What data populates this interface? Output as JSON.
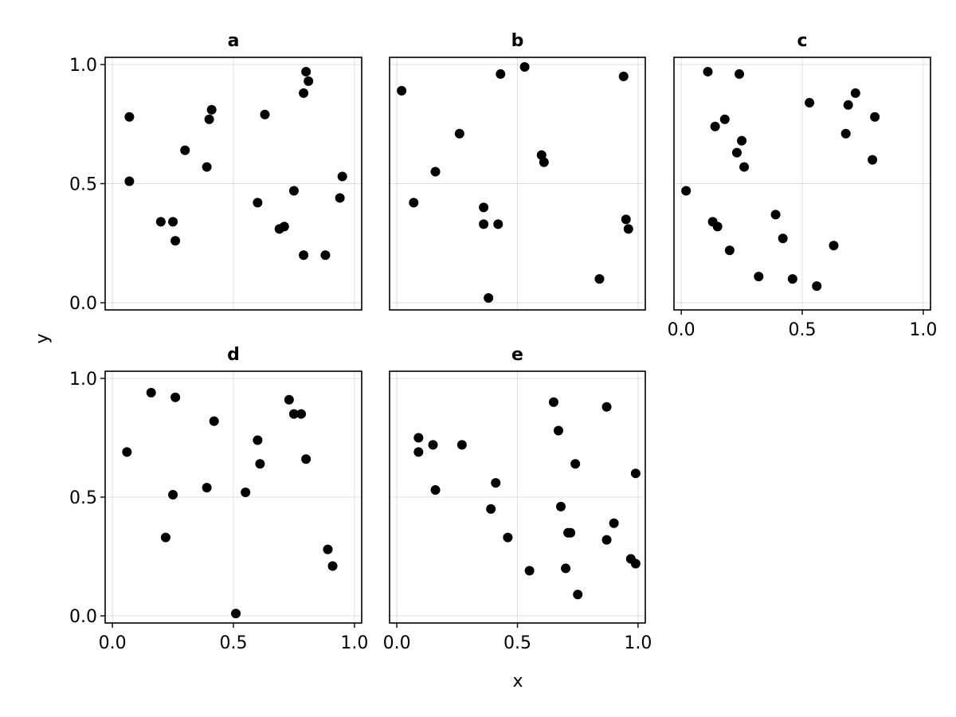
{
  "chart_data": {
    "type": "scatter",
    "xlabel": "x",
    "ylabel": "y",
    "xlim": [
      0.0,
      1.0
    ],
    "ylim": [
      0.0,
      1.0
    ],
    "xticks": [
      "0.0",
      "0.5",
      "1.0"
    ],
    "yticks": [
      "0.0",
      "0.5",
      "1.0"
    ],
    "grid": true,
    "marker_color": "#000000",
    "panels": [
      {
        "title": "a",
        "points": [
          [
            0.07,
            0.78
          ],
          [
            0.07,
            0.51
          ],
          [
            0.2,
            0.34
          ],
          [
            0.25,
            0.34
          ],
          [
            0.26,
            0.26
          ],
          [
            0.3,
            0.64
          ],
          [
            0.39,
            0.57
          ],
          [
            0.4,
            0.77
          ],
          [
            0.41,
            0.81
          ],
          [
            0.6,
            0.42
          ],
          [
            0.63,
            0.79
          ],
          [
            0.69,
            0.31
          ],
          [
            0.71,
            0.32
          ],
          [
            0.75,
            0.47
          ],
          [
            0.79,
            0.2
          ],
          [
            0.79,
            0.88
          ],
          [
            0.8,
            0.97
          ],
          [
            0.81,
            0.93
          ],
          [
            0.88,
            0.2
          ],
          [
            0.94,
            0.44
          ],
          [
            0.95,
            0.53
          ]
        ]
      },
      {
        "title": "b",
        "points": [
          [
            0.02,
            0.89
          ],
          [
            0.07,
            0.42
          ],
          [
            0.16,
            0.55
          ],
          [
            0.26,
            0.71
          ],
          [
            0.36,
            0.4
          ],
          [
            0.36,
            0.33
          ],
          [
            0.38,
            0.02
          ],
          [
            0.42,
            0.33
          ],
          [
            0.43,
            0.96
          ],
          [
            0.53,
            0.99
          ],
          [
            0.6,
            0.62
          ],
          [
            0.61,
            0.59
          ],
          [
            0.84,
            0.1
          ],
          [
            0.94,
            0.95
          ],
          [
            0.95,
            0.35
          ],
          [
            0.96,
            0.31
          ]
        ]
      },
      {
        "title": "c",
        "points": [
          [
            0.02,
            0.47
          ],
          [
            0.11,
            0.97
          ],
          [
            0.13,
            0.34
          ],
          [
            0.14,
            0.74
          ],
          [
            0.15,
            0.32
          ],
          [
            0.18,
            0.77
          ],
          [
            0.2,
            0.22
          ],
          [
            0.23,
            0.63
          ],
          [
            0.24,
            0.96
          ],
          [
            0.25,
            0.68
          ],
          [
            0.26,
            0.57
          ],
          [
            0.32,
            0.11
          ],
          [
            0.39,
            0.37
          ],
          [
            0.42,
            0.27
          ],
          [
            0.46,
            0.1
          ],
          [
            0.53,
            0.84
          ],
          [
            0.56,
            0.07
          ],
          [
            0.63,
            0.24
          ],
          [
            0.68,
            0.71
          ],
          [
            0.69,
            0.83
          ],
          [
            0.72,
            0.88
          ],
          [
            0.79,
            0.6
          ],
          [
            0.8,
            0.78
          ]
        ]
      },
      {
        "title": "d",
        "points": [
          [
            0.06,
            0.69
          ],
          [
            0.16,
            0.94
          ],
          [
            0.22,
            0.33
          ],
          [
            0.25,
            0.51
          ],
          [
            0.26,
            0.92
          ],
          [
            0.39,
            0.54
          ],
          [
            0.42,
            0.82
          ],
          [
            0.51,
            0.01
          ],
          [
            0.55,
            0.52
          ],
          [
            0.6,
            0.74
          ],
          [
            0.61,
            0.64
          ],
          [
            0.73,
            0.91
          ],
          [
            0.75,
            0.85
          ],
          [
            0.78,
            0.85
          ],
          [
            0.8,
            0.66
          ],
          [
            0.89,
            0.28
          ],
          [
            0.91,
            0.21
          ]
        ]
      },
      {
        "title": "e",
        "points": [
          [
            0.09,
            0.69
          ],
          [
            0.09,
            0.75
          ],
          [
            0.15,
            0.72
          ],
          [
            0.16,
            0.53
          ],
          [
            0.27,
            0.72
          ],
          [
            0.39,
            0.45
          ],
          [
            0.41,
            0.56
          ],
          [
            0.46,
            0.33
          ],
          [
            0.55,
            0.19
          ],
          [
            0.65,
            0.9
          ],
          [
            0.67,
            0.78
          ],
          [
            0.68,
            0.46
          ],
          [
            0.7,
            0.2
          ],
          [
            0.71,
            0.35
          ],
          [
            0.72,
            0.35
          ],
          [
            0.74,
            0.64
          ],
          [
            0.75,
            0.09
          ],
          [
            0.87,
            0.32
          ],
          [
            0.87,
            0.88
          ],
          [
            0.9,
            0.39
          ],
          [
            0.97,
            0.24
          ],
          [
            0.99,
            0.6
          ],
          [
            0.99,
            0.22
          ]
        ]
      }
    ]
  }
}
